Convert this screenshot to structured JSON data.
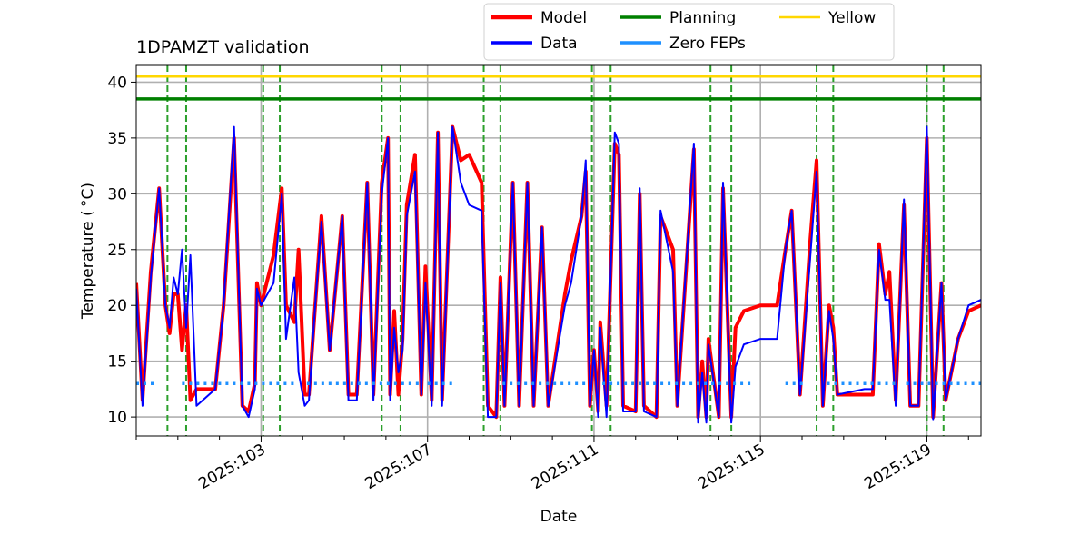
{
  "chart_data": {
    "type": "line",
    "title": "1DPAMZT validation",
    "xlabel": "Date",
    "ylabel": "Temperature ($^\\circ$C)",
    "ylabel_display": "Temperature ( °C)",
    "xlim": [
      100.0,
      120.3
    ],
    "ylim": [
      8.3,
      41.5
    ],
    "x_ticks": [
      {
        "value": 103,
        "label": "2025:103"
      },
      {
        "value": 107,
        "label": "2025:107"
      },
      {
        "value": 111,
        "label": "2025:111"
      },
      {
        "value": 115,
        "label": "2025:115"
      },
      {
        "value": 119,
        "label": "2025:119"
      }
    ],
    "y_ticks": [
      10,
      15,
      20,
      25,
      30,
      35,
      40
    ],
    "grid": true,
    "legend": {
      "placement": "top-center, outside plot",
      "columns": 3,
      "entries": [
        {
          "label": "Model",
          "color": "#ff0000",
          "style": "solid"
        },
        {
          "label": "Data",
          "color": "#0000ff",
          "style": "solid"
        },
        {
          "label": "Planning",
          "color": "#008000",
          "style": "solid"
        },
        {
          "label": "Zero FEPs",
          "color": "#1e90ff",
          "style": "solid"
        },
        {
          "label": "Yellow",
          "color": "#ffd700",
          "style": "solid"
        }
      ]
    },
    "reference_lines": [
      {
        "name": "Planning",
        "y": 38.5,
        "color": "#008000"
      },
      {
        "name": "Yellow",
        "y": 40.5,
        "color": "#ffd700"
      }
    ],
    "vertical_markers": {
      "color": "#2ca02c",
      "style": "dashed",
      "x": [
        100.75,
        101.2,
        103.05,
        103.45,
        105.9,
        106.35,
        108.35,
        108.75,
        110.95,
        111.4,
        113.8,
        114.3,
        116.35,
        116.75,
        119.0,
        119.4
      ]
    },
    "series": [
      {
        "name": "Model",
        "color": "#ff0000",
        "points": [
          [
            100.0,
            22.0
          ],
          [
            100.15,
            11.5
          ],
          [
            100.35,
            23.0
          ],
          [
            100.55,
            30.5
          ],
          [
            100.7,
            20.0
          ],
          [
            100.8,
            17.5
          ],
          [
            100.9,
            21.0
          ],
          [
            101.0,
            21.0
          ],
          [
            101.1,
            16.0
          ],
          [
            101.2,
            20.0
          ],
          [
            101.3,
            11.5
          ],
          [
            101.45,
            12.5
          ],
          [
            101.9,
            12.5
          ],
          [
            102.1,
            20.0
          ],
          [
            102.35,
            35.0
          ],
          [
            102.55,
            11.0
          ],
          [
            102.7,
            10.5
          ],
          [
            102.85,
            13.0
          ],
          [
            102.9,
            22.0
          ],
          [
            103.0,
            20.0
          ],
          [
            103.3,
            24.5
          ],
          [
            103.5,
            30.5
          ],
          [
            103.6,
            20.0
          ],
          [
            103.8,
            18.5
          ],
          [
            103.9,
            25.0
          ],
          [
            104.05,
            12.0
          ],
          [
            104.15,
            12.0
          ],
          [
            104.3,
            20.0
          ],
          [
            104.45,
            28.0
          ],
          [
            104.65,
            16.0
          ],
          [
            104.95,
            28.0
          ],
          [
            105.1,
            12.0
          ],
          [
            105.3,
            12.0
          ],
          [
            105.55,
            31.0
          ],
          [
            105.7,
            12.0
          ],
          [
            105.9,
            31.0
          ],
          [
            106.05,
            35.0
          ],
          [
            106.1,
            12.0
          ],
          [
            106.2,
            19.5
          ],
          [
            106.3,
            12.0
          ],
          [
            106.4,
            17.0
          ],
          [
            106.5,
            29.0
          ],
          [
            106.7,
            33.5
          ],
          [
            106.85,
            12.0
          ],
          [
            106.95,
            23.5
          ],
          [
            107.1,
            11.5
          ],
          [
            107.25,
            35.5
          ],
          [
            107.35,
            11.5
          ],
          [
            107.6,
            36.0
          ],
          [
            107.8,
            33.0
          ],
          [
            108.0,
            33.5
          ],
          [
            108.3,
            31.0
          ],
          [
            108.45,
            11.0
          ],
          [
            108.65,
            10.0
          ],
          [
            108.75,
            22.5
          ],
          [
            108.85,
            11.0
          ],
          [
            109.05,
            31.0
          ],
          [
            109.2,
            11.0
          ],
          [
            109.4,
            31.0
          ],
          [
            109.55,
            11.0
          ],
          [
            109.75,
            27.0
          ],
          [
            109.9,
            11.0
          ],
          [
            110.3,
            21.0
          ],
          [
            110.45,
            24.0
          ],
          [
            110.7,
            28.0
          ],
          [
            110.8,
            32.0
          ],
          [
            110.9,
            11.0
          ],
          [
            111.0,
            16.0
          ],
          [
            111.1,
            10.5
          ],
          [
            111.15,
            18.5
          ],
          [
            111.3,
            11.0
          ],
          [
            111.5,
            34.5
          ],
          [
            111.6,
            33.5
          ],
          [
            111.7,
            11.0
          ],
          [
            112.0,
            10.5
          ],
          [
            112.1,
            30.0
          ],
          [
            112.2,
            11.0
          ],
          [
            112.5,
            10.0
          ],
          [
            112.6,
            28.0
          ],
          [
            112.9,
            25.0
          ],
          [
            113.0,
            11.0
          ],
          [
            113.4,
            34.0
          ],
          [
            113.5,
            10.0
          ],
          [
            113.6,
            15.0
          ],
          [
            113.7,
            10.0
          ],
          [
            113.75,
            17.0
          ],
          [
            114.0,
            10.0
          ],
          [
            114.1,
            30.5
          ],
          [
            114.3,
            10.0
          ],
          [
            114.4,
            18.0
          ],
          [
            114.6,
            19.5
          ],
          [
            115.0,
            20.0
          ],
          [
            115.4,
            20.0
          ],
          [
            115.6,
            25.0
          ],
          [
            115.75,
            28.5
          ],
          [
            115.95,
            12.0
          ],
          [
            116.2,
            26.0
          ],
          [
            116.35,
            33.0
          ],
          [
            116.5,
            11.0
          ],
          [
            116.65,
            20.0
          ],
          [
            116.75,
            18.0
          ],
          [
            116.85,
            12.0
          ],
          [
            117.5,
            12.0
          ],
          [
            117.7,
            12.0
          ],
          [
            117.85,
            25.5
          ],
          [
            118.0,
            21.0
          ],
          [
            118.1,
            23.0
          ],
          [
            118.25,
            11.5
          ],
          [
            118.45,
            29.0
          ],
          [
            118.6,
            11.0
          ],
          [
            118.8,
            11.0
          ],
          [
            119.0,
            35.0
          ],
          [
            119.15,
            10.0
          ],
          [
            119.35,
            22.0
          ],
          [
            119.45,
            11.5
          ],
          [
            119.75,
            17.0
          ],
          [
            120.0,
            19.5
          ],
          [
            120.3,
            20.0
          ]
        ]
      },
      {
        "name": "Data",
        "color": "#0000ff",
        "points": [
          [
            100.0,
            21.5
          ],
          [
            100.15,
            11.0
          ],
          [
            100.35,
            22.5
          ],
          [
            100.55,
            30.5
          ],
          [
            100.7,
            20.0
          ],
          [
            100.8,
            18.0
          ],
          [
            100.9,
            22.5
          ],
          [
            101.0,
            21.0
          ],
          [
            101.1,
            25.0
          ],
          [
            101.2,
            18.0
          ],
          [
            101.3,
            24.5
          ],
          [
            101.45,
            11.0
          ],
          [
            101.9,
            12.5
          ],
          [
            102.1,
            20.0
          ],
          [
            102.35,
            36.0
          ],
          [
            102.55,
            11.0
          ],
          [
            102.7,
            10.0
          ],
          [
            102.85,
            12.5
          ],
          [
            102.9,
            21.5
          ],
          [
            103.0,
            20.0
          ],
          [
            103.3,
            22.0
          ],
          [
            103.5,
            30.0
          ],
          [
            103.6,
            17.0
          ],
          [
            103.8,
            22.5
          ],
          [
            103.9,
            14.0
          ],
          [
            104.05,
            11.0
          ],
          [
            104.15,
            11.5
          ],
          [
            104.3,
            20.0
          ],
          [
            104.45,
            27.5
          ],
          [
            104.65,
            16.0
          ],
          [
            104.95,
            28.0
          ],
          [
            105.1,
            11.5
          ],
          [
            105.3,
            11.5
          ],
          [
            105.55,
            31.0
          ],
          [
            105.7,
            11.5
          ],
          [
            105.9,
            30.0
          ],
          [
            106.05,
            35.0
          ],
          [
            106.1,
            11.5
          ],
          [
            106.2,
            18.0
          ],
          [
            106.3,
            14.0
          ],
          [
            106.4,
            16.0
          ],
          [
            106.5,
            28.0
          ],
          [
            106.7,
            32.0
          ],
          [
            106.85,
            12.0
          ],
          [
            106.95,
            22.0
          ],
          [
            107.1,
            11.0
          ],
          [
            107.25,
            35.5
          ],
          [
            107.35,
            11.0
          ],
          [
            107.6,
            36.0
          ],
          [
            107.8,
            31.0
          ],
          [
            108.0,
            29.0
          ],
          [
            108.3,
            28.5
          ],
          [
            108.45,
            10.0
          ],
          [
            108.65,
            10.0
          ],
          [
            108.75,
            22.0
          ],
          [
            108.85,
            11.0
          ],
          [
            109.05,
            31.0
          ],
          [
            109.2,
            11.0
          ],
          [
            109.4,
            31.0
          ],
          [
            109.55,
            11.0
          ],
          [
            109.75,
            27.0
          ],
          [
            109.9,
            11.0
          ],
          [
            110.3,
            20.0
          ],
          [
            110.45,
            22.0
          ],
          [
            110.7,
            28.0
          ],
          [
            110.8,
            33.0
          ],
          [
            110.9,
            11.0
          ],
          [
            111.0,
            16.0
          ],
          [
            111.1,
            10.0
          ],
          [
            111.15,
            18.0
          ],
          [
            111.3,
            10.0
          ],
          [
            111.5,
            35.5
          ],
          [
            111.6,
            34.5
          ],
          [
            111.7,
            10.5
          ],
          [
            112.0,
            10.5
          ],
          [
            112.1,
            30.5
          ],
          [
            112.2,
            10.5
          ],
          [
            112.5,
            10.0
          ],
          [
            112.6,
            28.5
          ],
          [
            112.9,
            23.0
          ],
          [
            113.0,
            11.0
          ],
          [
            113.4,
            34.5
          ],
          [
            113.5,
            9.5
          ],
          [
            113.6,
            14.0
          ],
          [
            113.7,
            9.5
          ],
          [
            113.75,
            16.5
          ],
          [
            114.0,
            10.0
          ],
          [
            114.1,
            31.0
          ],
          [
            114.3,
            9.5
          ],
          [
            114.4,
            14.5
          ],
          [
            114.6,
            16.5
          ],
          [
            115.0,
            17.0
          ],
          [
            115.4,
            17.0
          ],
          [
            115.6,
            25.0
          ],
          [
            115.75,
            28.5
          ],
          [
            115.95,
            12.0
          ],
          [
            116.2,
            24.5
          ],
          [
            116.35,
            32.0
          ],
          [
            116.5,
            11.0
          ],
          [
            116.65,
            19.5
          ],
          [
            116.75,
            17.0
          ],
          [
            116.85,
            12.0
          ],
          [
            117.5,
            12.5
          ],
          [
            117.7,
            12.5
          ],
          [
            117.85,
            25.0
          ],
          [
            118.0,
            20.5
          ],
          [
            118.1,
            20.5
          ],
          [
            118.25,
            11.0
          ],
          [
            118.45,
            29.5
          ],
          [
            118.6,
            11.0
          ],
          [
            118.8,
            11.0
          ],
          [
            119.0,
            36.0
          ],
          [
            119.15,
            9.8
          ],
          [
            119.35,
            22.0
          ],
          [
            119.45,
            11.5
          ],
          [
            119.75,
            17.0
          ],
          [
            120.0,
            20.0
          ],
          [
            120.3,
            20.5
          ]
        ]
      },
      {
        "name": "Zero FEPs",
        "color": "#1e90ff",
        "style": "dotted",
        "y": 13.0,
        "segments": [
          [
            100.0,
            100.45
          ],
          [
            101.1,
            103.8
          ],
          [
            104.1,
            106.8
          ],
          [
            107.0,
            107.6
          ],
          [
            108.8,
            110.9
          ],
          [
            111.2,
            114.8
          ],
          [
            115.6,
            116.1
          ],
          [
            116.6,
            118.3
          ],
          [
            118.5,
            120.3
          ]
        ]
      }
    ]
  }
}
